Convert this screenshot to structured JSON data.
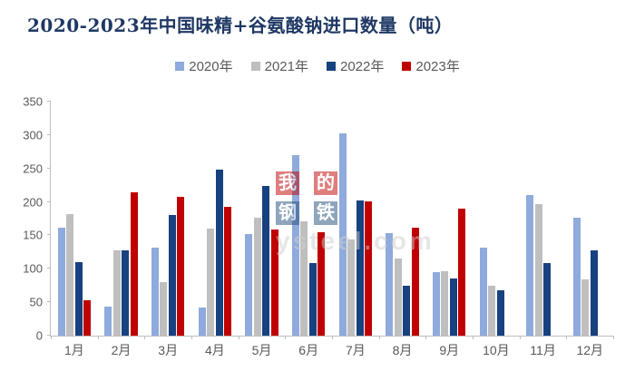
{
  "page": {
    "background": "#FFFFFF"
  },
  "chart_data": {
    "type": "bar",
    "title": "2020-2023年中国味精+谷氨酸钠进口数量（吨）",
    "title_color": "#1F3864",
    "categories": [
      "1月",
      "2月",
      "3月",
      "4月",
      "5月",
      "6月",
      "7月",
      "8月",
      "9月",
      "10月",
      "11月",
      "12月"
    ],
    "series": [
      {
        "name": "2020年",
        "color": "#8FAADC",
        "values": [
          161,
          44,
          132,
          42,
          152,
          270,
          302,
          153,
          95,
          131,
          210,
          176
        ]
      },
      {
        "name": "2021年",
        "color": "#BFBFBF",
        "values": [
          182,
          128,
          80,
          160,
          177,
          171,
          144,
          115,
          97,
          75,
          197,
          84
        ]
      },
      {
        "name": "2022年",
        "color": "#17417F",
        "values": [
          110,
          127,
          180,
          248,
          224,
          109,
          202,
          75,
          85,
          68,
          108,
          128
        ]
      },
      {
        "name": "2023年",
        "color": "#C00000",
        "values": [
          53,
          215,
          208,
          193,
          159,
          154,
          201,
          161,
          190,
          null,
          null,
          null
        ]
      }
    ],
    "xlabel": "",
    "ylabel": "",
    "ylim": [
      0,
      350
    ],
    "ytick_step": 50,
    "yticks": [
      0,
      50,
      100,
      150,
      200,
      250,
      300,
      350
    ],
    "grid": false,
    "legend_position": "top",
    "axis_line_color": "#BFBFBF",
    "axis_label_color": "#595959"
  },
  "watermark": {
    "blocks": [
      {
        "char": "我",
        "bg": "#C00000"
      },
      {
        "char": "的",
        "bg": "#C00000"
      },
      {
        "char": "钢",
        "bg": "#1F4E79"
      },
      {
        "char": "铁",
        "bg": "#1F4E79"
      }
    ],
    "domain_text": "ysteel.com"
  }
}
